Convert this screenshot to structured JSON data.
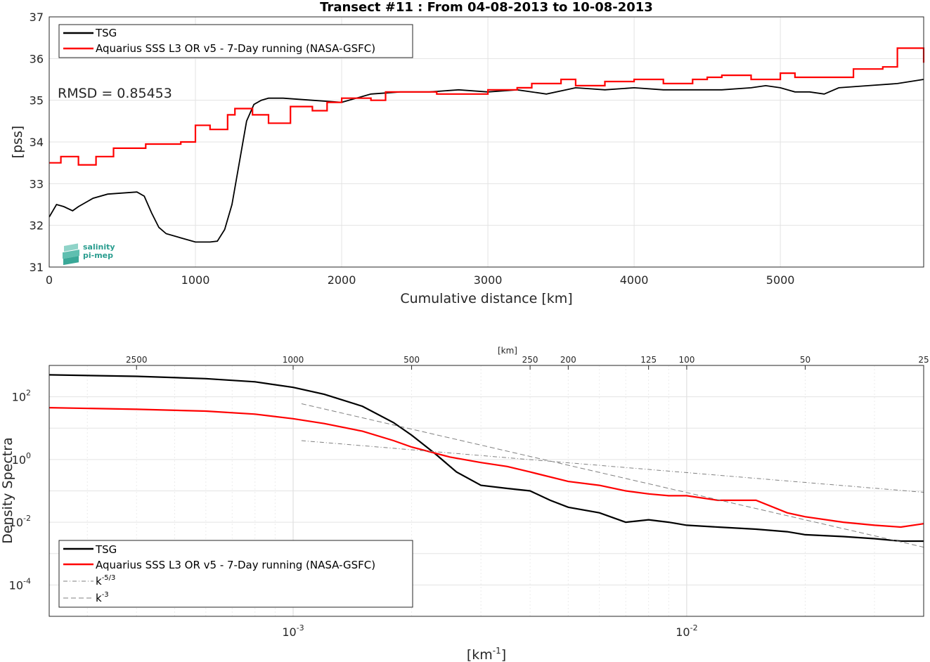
{
  "chart_data": [
    {
      "type": "line",
      "title": "Transect #11 : From 04-08-2013 to 10-08-2013",
      "xlabel": "Cumulative distance [km]",
      "ylabel": "[pss]",
      "xlim": [
        0,
        5980
      ],
      "ylim": [
        31,
        37
      ],
      "xticks": [
        "0",
        "1000",
        "2000",
        "3000",
        "4000",
        "5000"
      ],
      "yticks": [
        "31",
        "32",
        "33",
        "34",
        "35",
        "36",
        "37"
      ],
      "grid": true,
      "legend_position": "top-left",
      "annotation": "RMSD = 0.85453",
      "logo": "salinity pi-mep",
      "colors": {
        "tsg": "#000000",
        "aquarius": "#ff0000"
      },
      "series": [
        {
          "name": "TSG",
          "x": [
            0,
            50,
            100,
            160,
            200,
            300,
            400,
            600,
            650,
            700,
            750,
            800,
            900,
            1000,
            1100,
            1150,
            1200,
            1250,
            1300,
            1350,
            1400,
            1450,
            1500,
            1600,
            1800,
            2000,
            2200,
            2400,
            2600,
            2800,
            3000,
            3200,
            3400,
            3600,
            3800,
            4000,
            4200,
            4400,
            4600,
            4800,
            4900,
            5000,
            5100,
            5200,
            5300,
            5400,
            5600,
            5800,
            5980
          ],
          "values": [
            32.2,
            32.5,
            32.45,
            32.35,
            32.45,
            32.65,
            32.75,
            32.8,
            32.7,
            32.3,
            31.95,
            31.8,
            31.7,
            31.6,
            31.6,
            31.62,
            31.9,
            32.5,
            33.5,
            34.5,
            34.9,
            35.0,
            35.05,
            35.05,
            35.0,
            34.95,
            35.15,
            35.2,
            35.2,
            35.25,
            35.2,
            35.25,
            35.15,
            35.3,
            35.25,
            35.3,
            35.25,
            35.25,
            35.25,
            35.3,
            35.35,
            35.3,
            35.2,
            35.2,
            35.15,
            35.3,
            35.35,
            35.4,
            35.5
          ]
        },
        {
          "name": "Aquarius SSS L3 OR v5 - 7-Day running (NASA-GSFC)",
          "x": [
            0,
            80,
            200,
            320,
            440,
            660,
            900,
            1000,
            1100,
            1220,
            1270,
            1390,
            1500,
            1650,
            1800,
            1900,
            2000,
            2200,
            2300,
            2500,
            2650,
            2800,
            3000,
            3200,
            3300,
            3500,
            3600,
            3800,
            4000,
            4200,
            4400,
            4500,
            4600,
            4800,
            5000,
            5100,
            5300,
            5500,
            5700,
            5800,
            5980
          ],
          "values": [
            33.5,
            33.65,
            33.45,
            33.65,
            33.85,
            33.95,
            34.0,
            34.4,
            34.3,
            34.65,
            34.8,
            34.65,
            34.45,
            34.85,
            34.75,
            34.95,
            35.05,
            35.0,
            35.2,
            35.2,
            35.15,
            35.15,
            35.25,
            35.3,
            35.4,
            35.5,
            35.35,
            35.45,
            35.5,
            35.4,
            35.5,
            35.55,
            35.6,
            35.5,
            35.65,
            35.55,
            35.55,
            35.75,
            35.8,
            36.25,
            35.9
          ]
        }
      ]
    },
    {
      "type": "line",
      "title": "",
      "xlabel": "[km-1]",
      "xlabel_base": "[km",
      "xlabel_sup": "-1",
      "xlabel_end": "]",
      "ylabel": "Density Spectra",
      "top_axis_label": "[km]",
      "top_ticks": [
        "2500",
        "1000",
        "500",
        "250",
        "200",
        "125",
        "100",
        "50",
        "25"
      ],
      "xscale": "log",
      "yscale": "log",
      "xlim": [
        0.00024,
        0.04
      ],
      "ylim": [
        1e-05,
        1000
      ],
      "xticks": [
        {
          "base": "10",
          "exp": "-3"
        },
        {
          "base": "10",
          "exp": "-2"
        }
      ],
      "yticks": [
        {
          "base": "10",
          "exp": "2"
        },
        {
          "base": "10",
          "exp": "0"
        },
        {
          "base": "10",
          "exp": "-2"
        },
        {
          "base": "10",
          "exp": "-4"
        }
      ],
      "grid": true,
      "legend_position": "bottom-left",
      "colors": {
        "tsg": "#000000",
        "aquarius": "#ff0000",
        "ref": "#808080"
      },
      "series": [
        {
          "name": "TSG",
          "x": [
            0.00024,
            0.0004,
            0.0006,
            0.0008,
            0.001,
            0.0012,
            0.0015,
            0.0018,
            0.002,
            0.0023,
            0.0026,
            0.003,
            0.0035,
            0.004,
            0.0045,
            0.005,
            0.006,
            0.007,
            0.008,
            0.009,
            0.01,
            0.012,
            0.015,
            0.018,
            0.02,
            0.025,
            0.03,
            0.035,
            0.04
          ],
          "values": [
            500,
            450,
            380,
            300,
            200,
            120,
            50,
            15,
            6,
            1.5,
            0.4,
            0.15,
            0.12,
            0.1,
            0.05,
            0.03,
            0.02,
            0.01,
            0.012,
            0.01,
            0.008,
            0.007,
            0.006,
            0.005,
            0.004,
            0.0035,
            0.003,
            0.0025,
            0.0025
          ]
        },
        {
          "name": "Aquarius SSS L3 OR v5 - 7-Day running (NASA-GSFC)",
          "x": [
            0.00024,
            0.0004,
            0.0006,
            0.0008,
            0.001,
            0.0012,
            0.0015,
            0.0018,
            0.002,
            0.0025,
            0.003,
            0.0035,
            0.004,
            0.005,
            0.006,
            0.007,
            0.008,
            0.009,
            0.01,
            0.012,
            0.015,
            0.018,
            0.02,
            0.025,
            0.03,
            0.035,
            0.04
          ],
          "values": [
            45,
            40,
            35,
            28,
            20,
            14,
            8,
            4,
            2.5,
            1.2,
            0.8,
            0.6,
            0.4,
            0.2,
            0.15,
            0.1,
            0.08,
            0.07,
            0.07,
            0.05,
            0.05,
            0.02,
            0.015,
            0.01,
            0.008,
            0.007,
            0.009
          ]
        },
        {
          "name": "k-5/3",
          "name_base": "k",
          "name_sup": "-5/3",
          "x": [
            0.00105,
            0.04
          ],
          "values": [
            4,
            0.09
          ]
        },
        {
          "name": "k-3",
          "name_base": "k",
          "name_sup": "-3",
          "x": [
            0.00105,
            0.04
          ],
          "values": [
            60,
            0.0016
          ]
        }
      ]
    }
  ]
}
